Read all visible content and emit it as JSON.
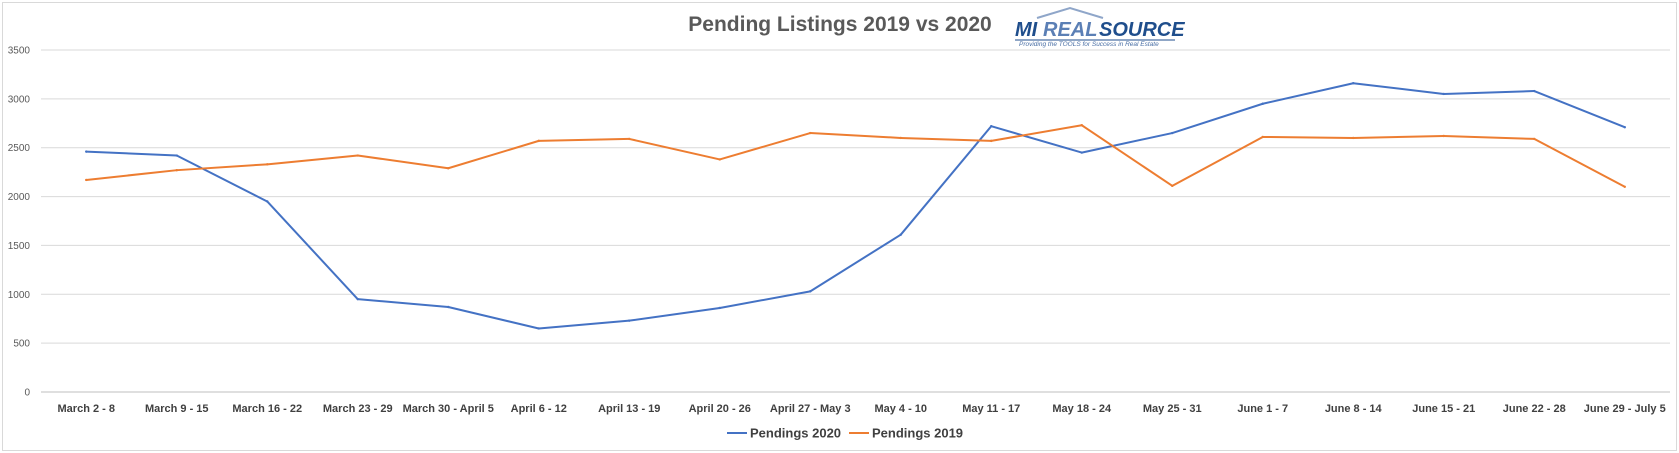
{
  "chart_data": {
    "type": "line",
    "title": "Pending Listings 2019 vs 2020",
    "categories": [
      "March 2 - 8",
      "March 9 - 15",
      "March 16 - 22",
      "March 23 - 29",
      "March 30 - April 5",
      "April 6 - 12",
      "April 13 - 19",
      "April 20 - 26",
      "April 27 - May 3",
      "May 4 - 10",
      "May 11 - 17",
      "May 18 - 24",
      "May 25 - 31",
      "June 1 - 7",
      "June 8 - 14",
      "June 15 - 21",
      "June 22 - 28",
      "June 29 - July 5"
    ],
    "series": [
      {
        "name": "Pendings 2020",
        "color": "#4472c4",
        "values": [
          2460,
          2420,
          1950,
          950,
          870,
          650,
          730,
          860,
          1030,
          1610,
          2720,
          2450,
          2650,
          2950,
          3160,
          3050,
          3080,
          2710
        ]
      },
      {
        "name": "Pendings 2019",
        "color": "#ed7d31",
        "values": [
          2170,
          2270,
          2330,
          2420,
          2290,
          2570,
          2590,
          2380,
          2650,
          2600,
          2570,
          2730,
          2110,
          2610,
          2600,
          2620,
          2590,
          2100
        ]
      }
    ],
    "ylim": [
      0,
      3500
    ],
    "yticks": [
      "0",
      "500",
      "1000",
      "1500",
      "2000",
      "2500",
      "3000",
      "3500"
    ],
    "grid": true,
    "legend_position": "bottom",
    "xlabel": "",
    "ylabel": ""
  },
  "logo": {
    "part1": "MI",
    "part2": "REAL",
    "part3": "SOURCE",
    "tagline": "Providing the TOOLS for Success in Real Estate",
    "color_primary": "#1f4e8c",
    "color_accent": "#5b7fb5"
  }
}
